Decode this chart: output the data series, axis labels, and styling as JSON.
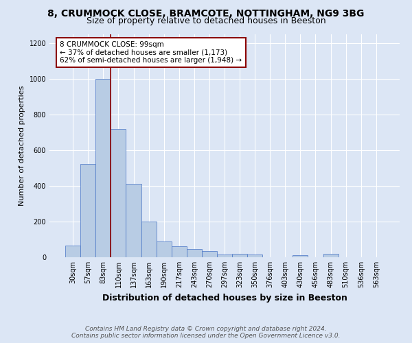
{
  "title1": "8, CRUMMOCK CLOSE, BRAMCOTE, NOTTINGHAM, NG9 3BG",
  "title2": "Size of property relative to detached houses in Beeston",
  "xlabel": "Distribution of detached houses by size in Beeston",
  "ylabel": "Number of detached properties",
  "bar_labels": [
    "30sqm",
    "57sqm",
    "83sqm",
    "110sqm",
    "137sqm",
    "163sqm",
    "190sqm",
    "217sqm",
    "243sqm",
    "270sqm",
    "297sqm",
    "323sqm",
    "350sqm",
    "376sqm",
    "403sqm",
    "430sqm",
    "456sqm",
    "483sqm",
    "510sqm",
    "536sqm",
    "563sqm"
  ],
  "bar_values": [
    65,
    525,
    1000,
    720,
    410,
    200,
    90,
    60,
    45,
    35,
    15,
    20,
    15,
    0,
    0,
    10,
    0,
    20,
    0,
    0,
    0
  ],
  "bar_color": "#b8cce4",
  "bar_edge_color": "#4472c4",
  "vline_color": "#8B0000",
  "annotation_text": "8 CRUMMOCK CLOSE: 99sqm\n← 37% of detached houses are smaller (1,173)\n62% of semi-detached houses are larger (1,948) →",
  "annotation_box_color": "white",
  "annotation_box_edge_color": "#8B0000",
  "ylim": [
    0,
    1250
  ],
  "yticks": [
    0,
    200,
    400,
    600,
    800,
    1000,
    1200
  ],
  "footer1": "Contains HM Land Registry data © Crown copyright and database right 2024.",
  "footer2": "Contains public sector information licensed under the Open Government Licence v3.0.",
  "bg_color": "#dce6f5",
  "plot_bg_color": "#dce6f5",
  "title1_fontsize": 10,
  "title2_fontsize": 9,
  "xlabel_fontsize": 9,
  "ylabel_fontsize": 8,
  "tick_fontsize": 7,
  "annotation_fontsize": 7.5,
  "footer_fontsize": 6.5
}
